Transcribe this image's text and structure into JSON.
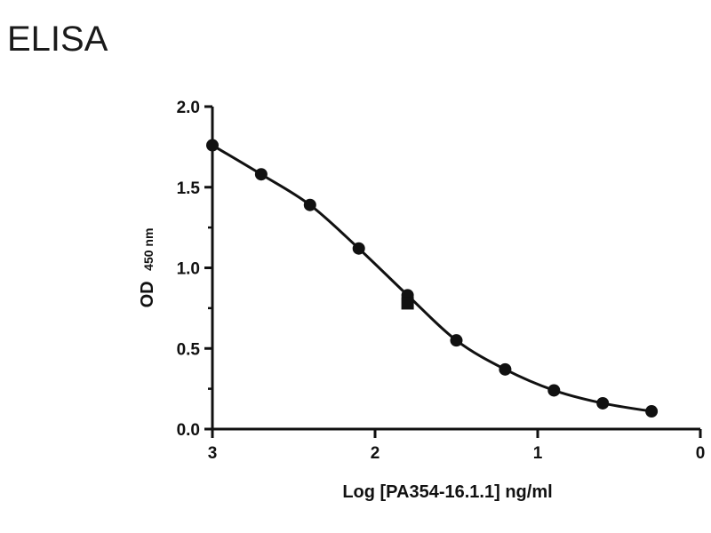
{
  "page": {
    "title": "ELISA"
  },
  "chart_data": {
    "type": "scatter",
    "title": "",
    "xlabel": "Log [PA354-16.1.1] ng/ml",
    "ylabel": {
      "main": "OD",
      "subscript": "450 nm"
    },
    "xlim": [
      3,
      0
    ],
    "ylim": [
      0,
      2.0
    ],
    "x_ticks": [
      3,
      2,
      1,
      0
    ],
    "x_tick_labels": [
      "3",
      "2",
      "1",
      "0"
    ],
    "y_ticks": [
      0,
      0.5,
      1.0,
      1.5,
      2.0
    ],
    "y_tick_labels": [
      "0.0",
      "0.5",
      "1.0",
      "1.5",
      "2.0"
    ],
    "grid": false,
    "series": [
      {
        "marker": "circle",
        "fit": "sigmoidal",
        "x": [
          3.0,
          2.7,
          2.4,
          2.1,
          1.8,
          1.5,
          1.2,
          0.9,
          0.6,
          0.3
        ],
        "y": [
          1.76,
          1.58,
          1.39,
          1.12,
          0.83,
          0.55,
          0.37,
          0.24,
          0.16,
          0.11
        ]
      },
      {
        "marker": "square",
        "x": [
          1.8
        ],
        "y": [
          0.78
        ]
      }
    ],
    "colors": {
      "marks": "#111111",
      "axis": "#111111"
    }
  }
}
